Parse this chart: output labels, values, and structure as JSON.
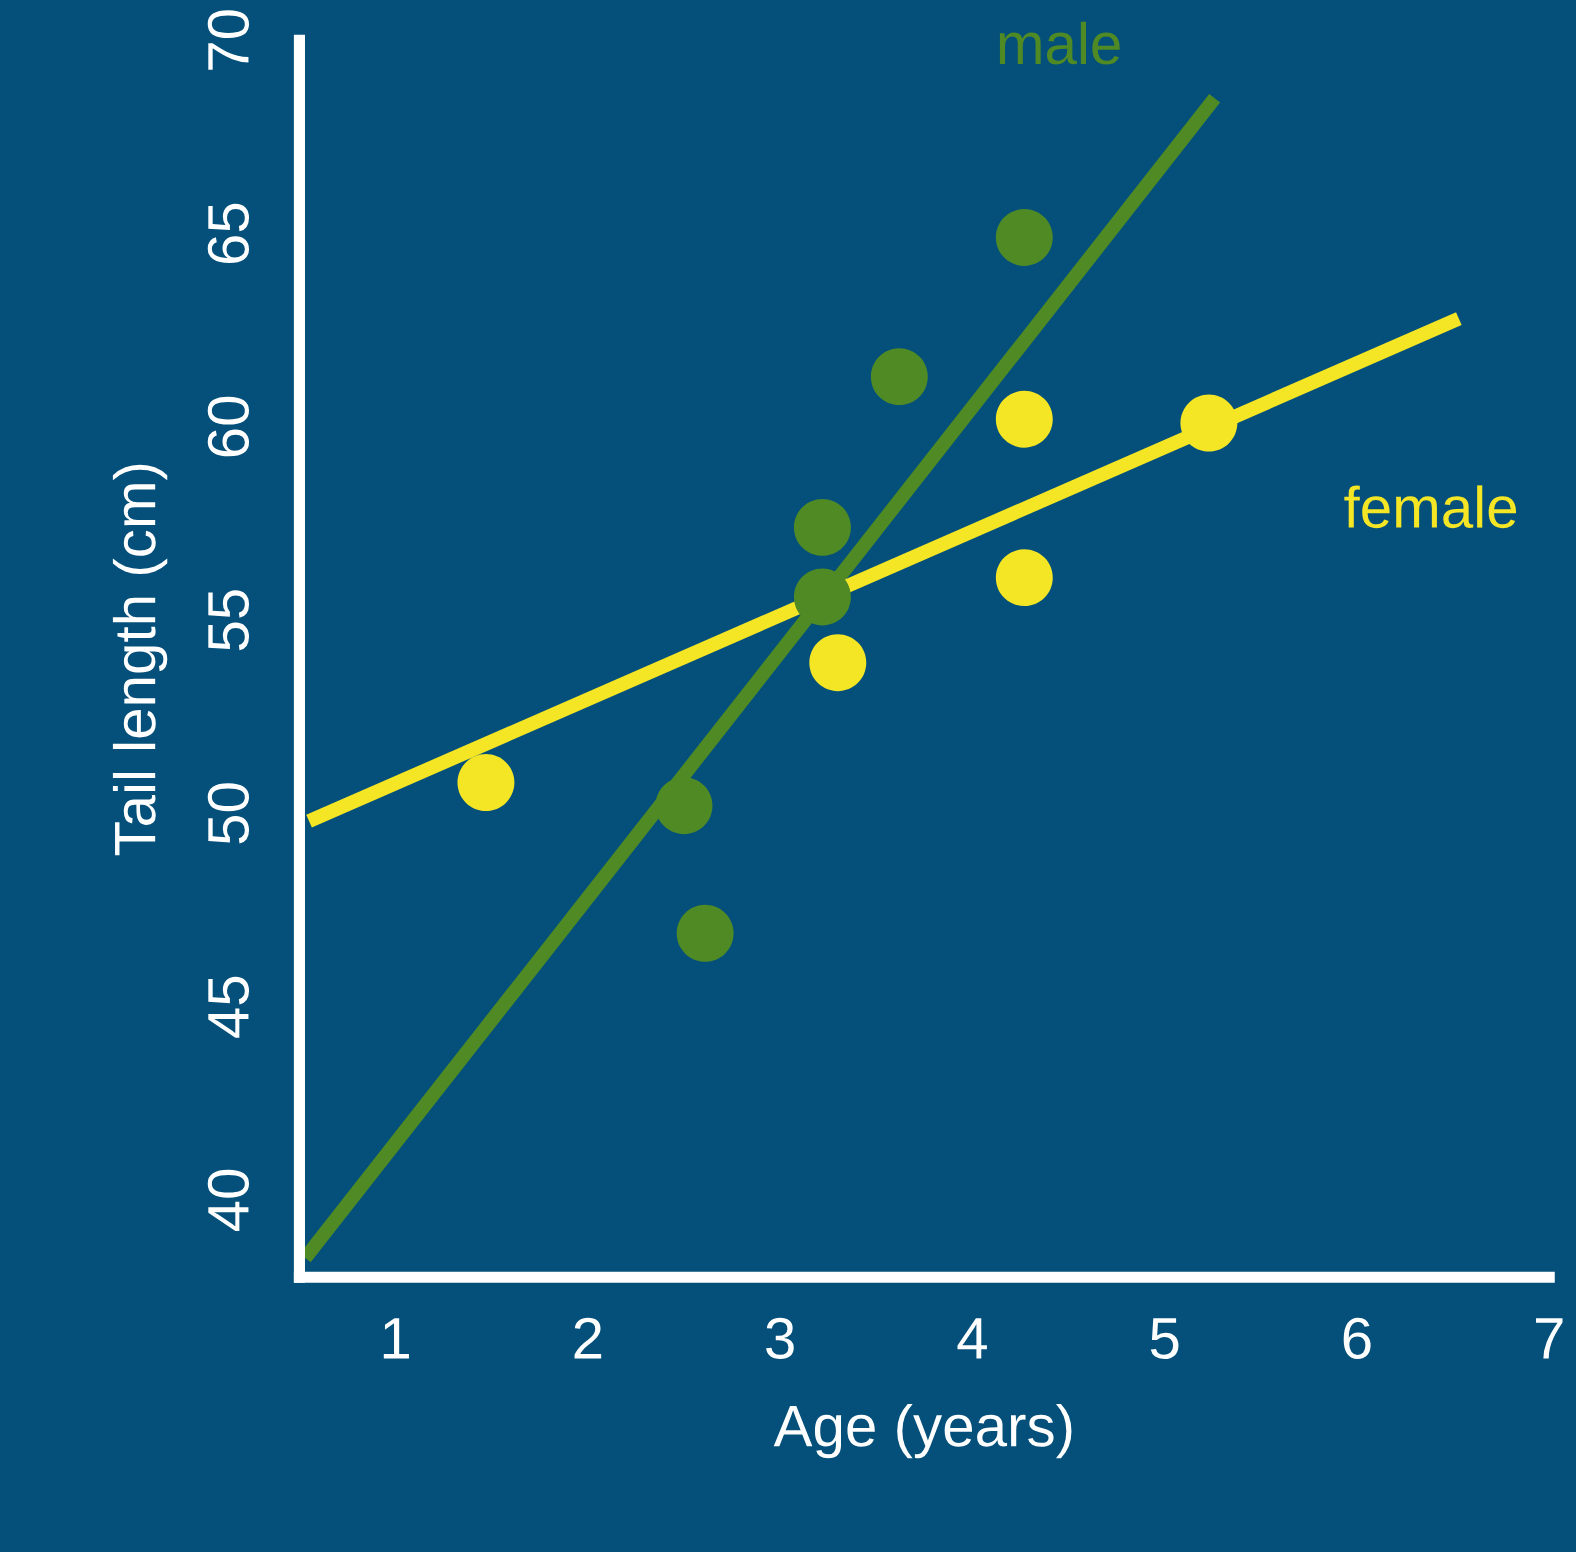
{
  "chart_data": {
    "type": "scatter",
    "xlabel": "Age (years)",
    "ylabel": "Tail length (cm)",
    "xlim": [
      0.5,
      7
    ],
    "ylim": [
      38,
      70
    ],
    "xticks": [
      1,
      2,
      3,
      4,
      5,
      6,
      7
    ],
    "yticks": [
      40,
      45,
      50,
      55,
      60,
      65,
      70
    ],
    "grid": false,
    "marker": "circle",
    "series": [
      {
        "type": "line",
        "marker": "none",
        "name": "male",
        "color": "#4f8a25",
        "x": [
          0.53,
          5.26
        ],
        "values": [
          38.5,
          68.5
        ]
      },
      {
        "type": "line",
        "marker": "none",
        "name": "female",
        "color": "#f5e625",
        "x": [
          0.55,
          6.53
        ],
        "values": [
          49.8,
          62.8
        ]
      },
      {
        "color": "#4f8a25",
        "x": [
          2.5,
          2.61,
          3.22,
          3.22,
          3.62,
          4.27
        ],
        "values": [
          50.2,
          46.9,
          57.4,
          55.6,
          61.3,
          64.9
        ]
      },
      {
        "color": "#f5e625",
        "x": [
          1.47,
          3.3,
          4.27,
          4.27,
          5.23
        ],
        "values": [
          50.8,
          53.9,
          60.2,
          56.1,
          60.1
        ]
      }
    ]
  }
}
